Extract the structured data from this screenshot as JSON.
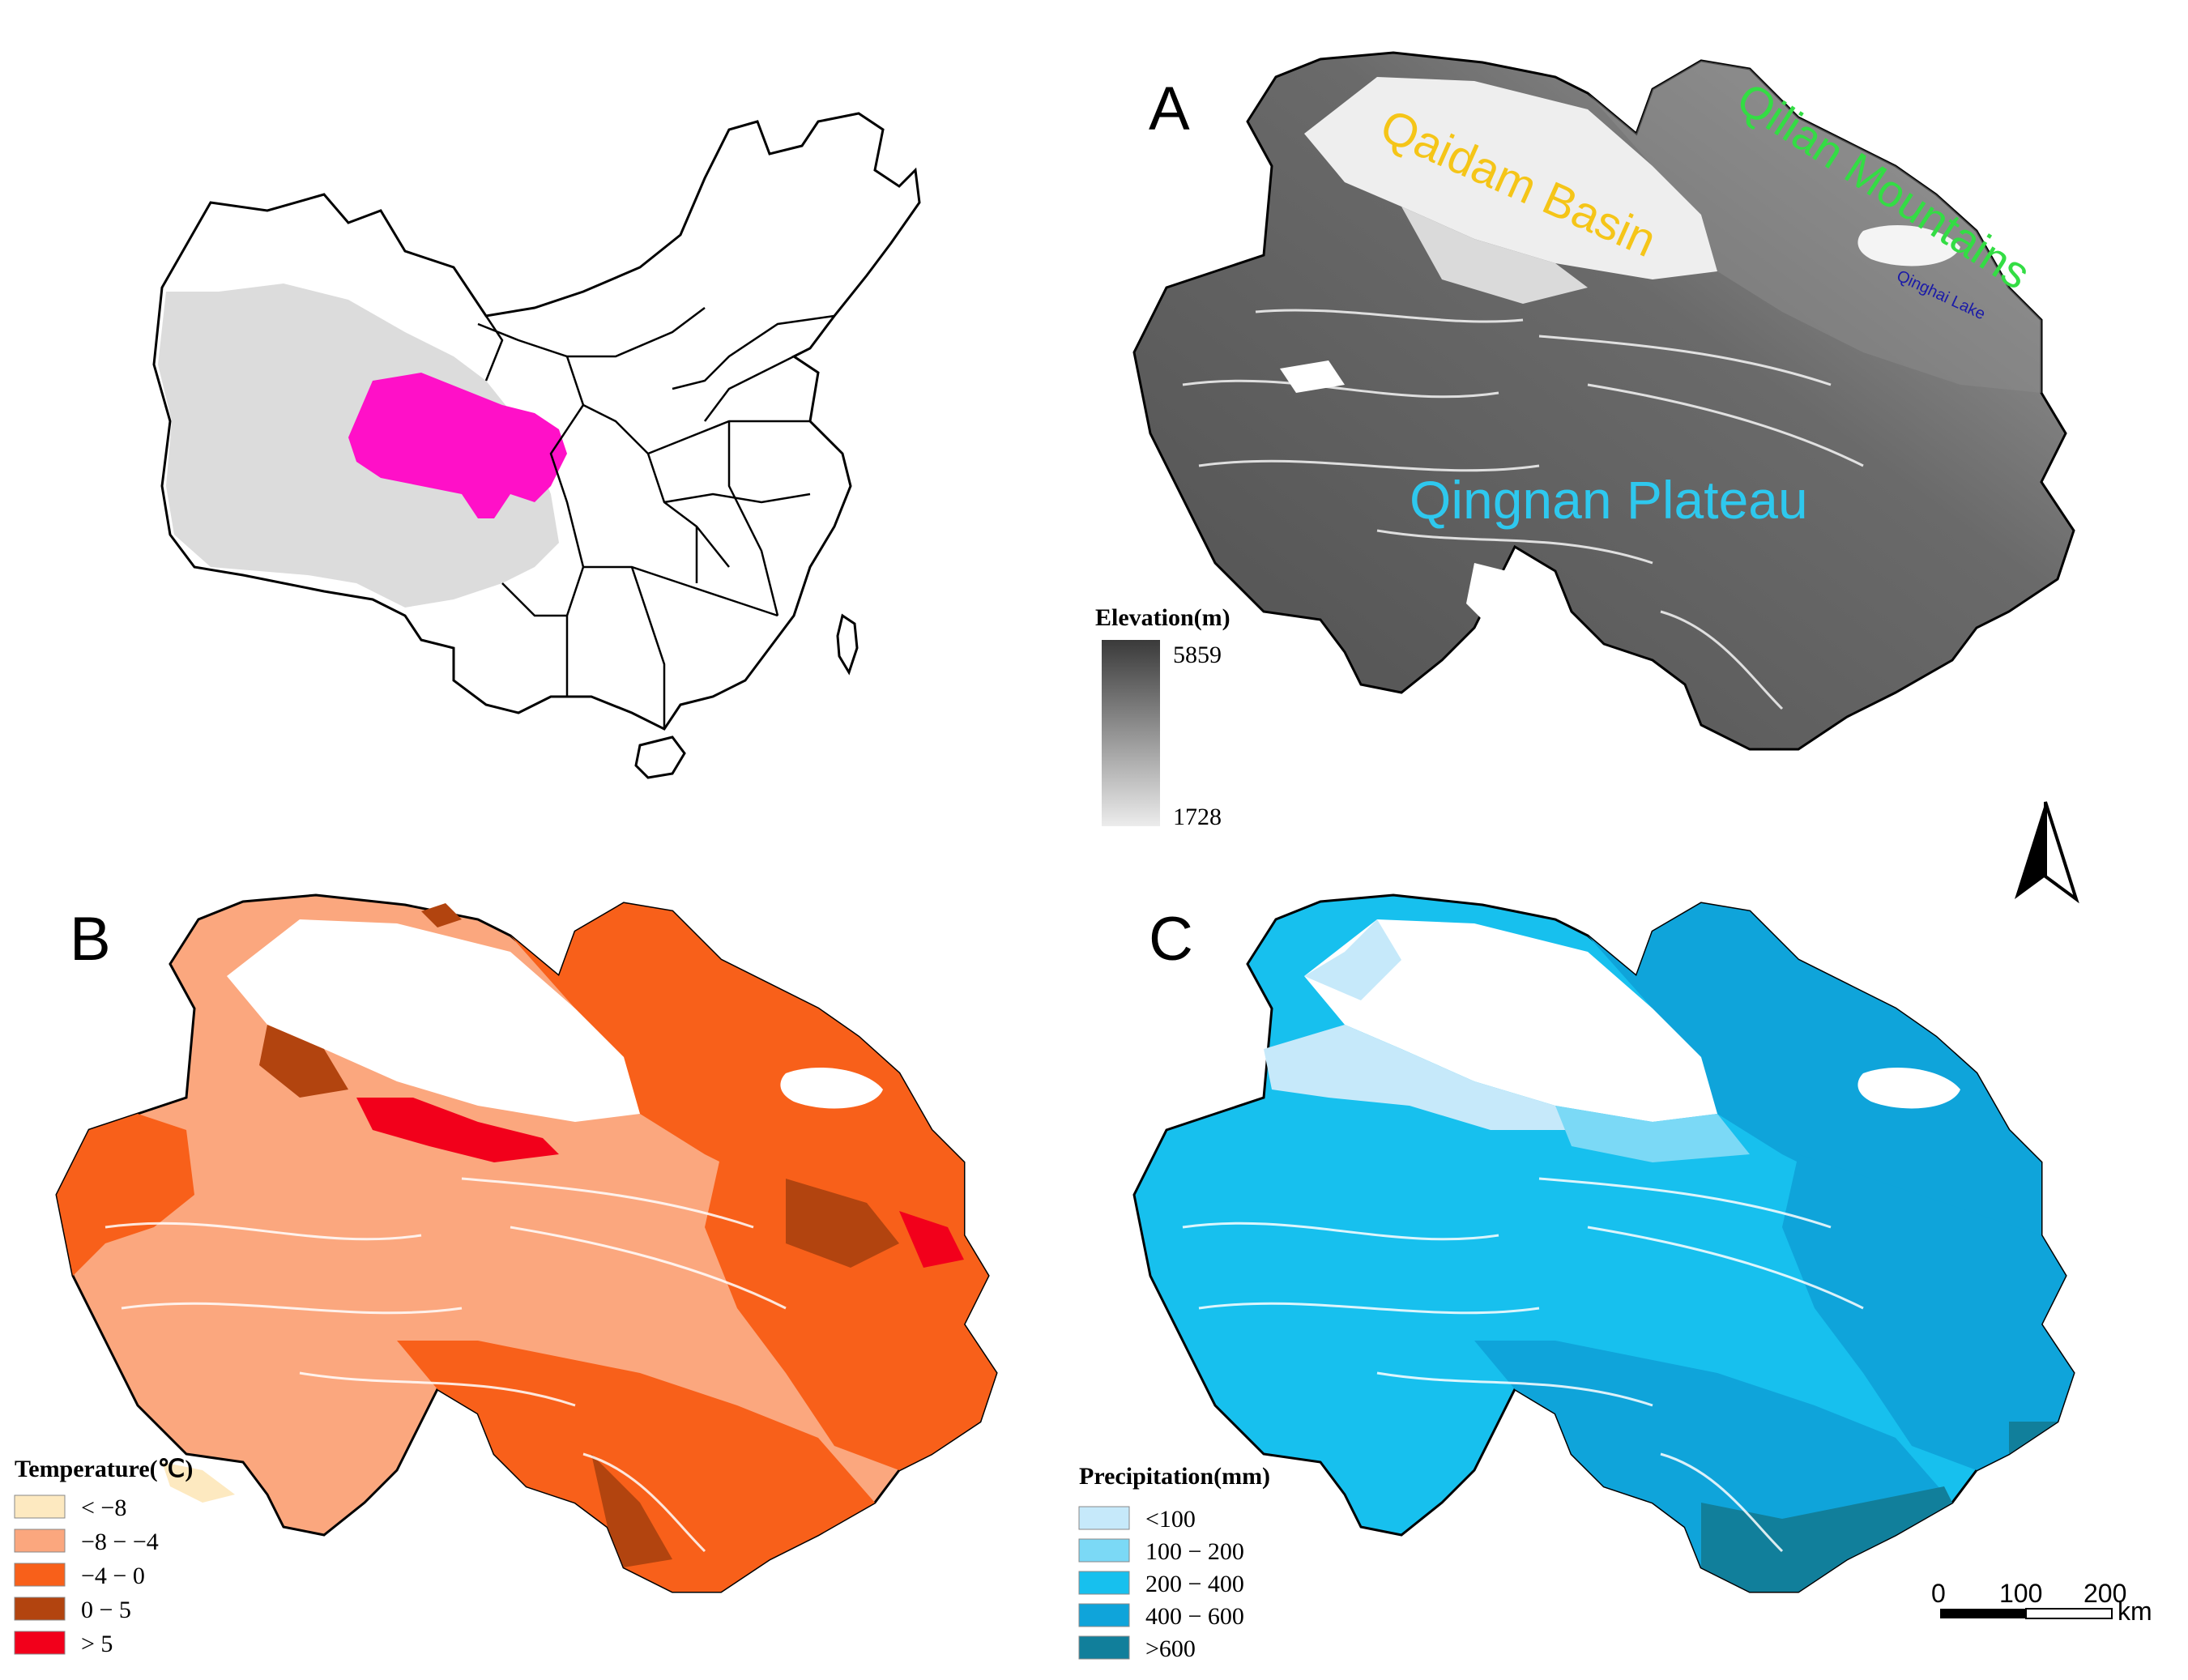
{
  "panels": {
    "a": {
      "letter": "A"
    },
    "b": {
      "letter": "B"
    },
    "c": {
      "letter": "C"
    }
  },
  "labels": {
    "qaidam": {
      "text": "Qaidam Basin",
      "color": "#f5c518"
    },
    "qilian": {
      "text": "Qilian Mountains",
      "color": "#33dd44"
    },
    "qinghai_lake": {
      "text": "Qinghai Lake",
      "color": "#1a1aa8"
    },
    "qingnan": {
      "text": "Qingnan  Plateau",
      "color": "#2ec8ee"
    }
  },
  "locator": {
    "highlight_color": "#ff10c8",
    "plateau_color": "#dcdcdc"
  },
  "elevation_legend": {
    "title": "Elevation(m)",
    "max": "5859",
    "min": "1728",
    "color_high": "#3a3a3a",
    "color_low": "#ececec"
  },
  "temperature_legend": {
    "title": "Temperature(℃)",
    "items": [
      {
        "label": "< −8",
        "color": "#fde9c0"
      },
      {
        "label": "−8 − −4",
        "color": "#fba77e"
      },
      {
        "label": "−4 − 0",
        "color": "#f8601a"
      },
      {
        "label": "0 − 5",
        "color": "#b2440f"
      },
      {
        "label": "> 5",
        "color": "#f2001b"
      }
    ]
  },
  "precipitation_legend": {
    "title": "Precipitation(mm)",
    "items": [
      {
        "label": "<100",
        "color": "#c6e9fa"
      },
      {
        "label": "100 − 200",
        "color": "#7bd9f6"
      },
      {
        "label": "200 − 400",
        "color": "#17c0ee"
      },
      {
        "label": "400 − 600",
        "color": "#0fa4da"
      },
      {
        "label": ">600",
        "color": "#117f9b"
      }
    ]
  },
  "scale_bar": {
    "ticks": [
      "0",
      "100",
      "200"
    ],
    "unit": "km"
  },
  "north_arrow": {
    "icon": "north-arrow-icon"
  }
}
